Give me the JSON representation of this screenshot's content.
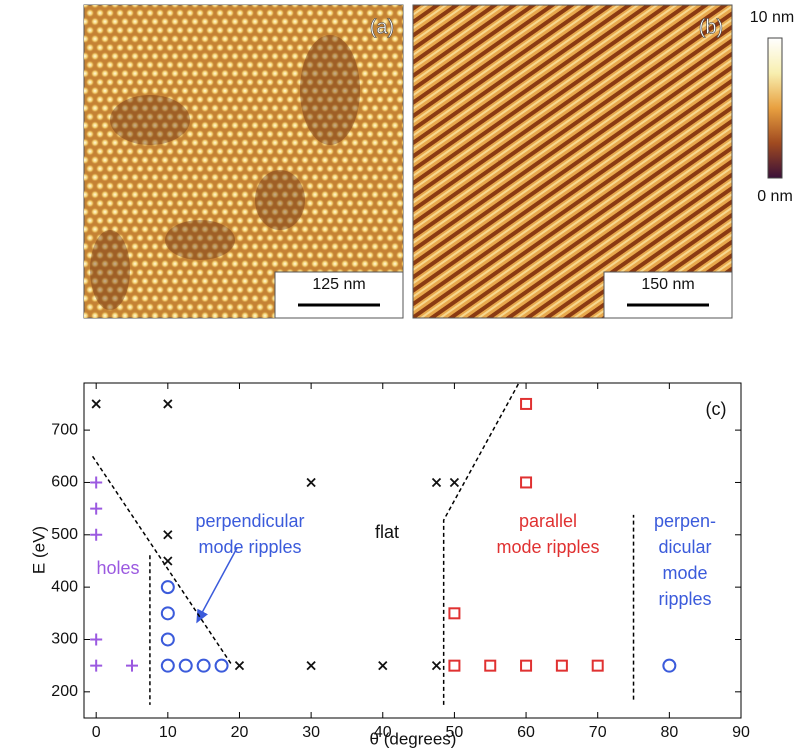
{
  "panels": [
    {
      "label": "(a)",
      "scale_bar": "125 nm"
    },
    {
      "label": "(b)",
      "scale_bar": "150 nm"
    }
  ],
  "colorbar": {
    "max_label": "10 nm",
    "min_label": "0 nm"
  },
  "chart_data": {
    "type": "scatter",
    "xlabel": "θ (degrees)",
    "ylabel": "E  (eV)",
    "xlim": [
      -1.7,
      90
    ],
    "ylim": [
      150,
      790
    ],
    "xticks": [
      0,
      10,
      20,
      30,
      40,
      50,
      60,
      70,
      80,
      90
    ],
    "yticks": [
      200,
      300,
      400,
      500,
      600,
      700
    ],
    "series": [
      {
        "marker": "plus",
        "color": "#9b59e0",
        "x": [
          0,
          0,
          0,
          0,
          0,
          5
        ],
        "values": [
          250,
          300,
          500,
          550,
          600,
          250
        ]
      },
      {
        "marker": "x",
        "color": "#111111",
        "x": [
          0,
          10,
          10,
          10,
          20,
          30,
          30,
          40,
          47.5,
          50,
          47.5
        ],
        "values": [
          750,
          750,
          500,
          450,
          250,
          600,
          250,
          250,
          600,
          600,
          250
        ]
      },
      {
        "marker": "circle",
        "color": "#3b5bdb",
        "x": [
          10,
          10,
          10,
          10,
          12.5,
          15,
          17.5,
          80
        ],
        "values": [
          400,
          350,
          300,
          250,
          250,
          250,
          250,
          250
        ]
      },
      {
        "marker": "square",
        "color": "#e03131",
        "x": [
          60,
          60,
          50,
          50,
          55,
          60,
          65,
          70
        ],
        "values": [
          750,
          600,
          350,
          250,
          250,
          250,
          250,
          250
        ]
      }
    ],
    "lines": [
      {
        "x": [
          -0.5,
          19
        ],
        "values": [
          650,
          250
        ]
      },
      {
        "x": [
          7.5,
          7.5
        ],
        "values": [
          461,
          175
        ]
      },
      {
        "x": [
          48.5,
          48.5,
          59
        ],
        "values": [
          175,
          528,
          790
        ]
      },
      {
        "x": [
          75,
          75
        ],
        "values": [
          185,
          538
        ]
      }
    ],
    "annotations": [
      {
        "lines": [
          "holes"
        ],
        "color": "#9b59e0"
      },
      {
        "lines": [
          "perpendicular",
          "mode ripples"
        ],
        "color": "#3b5bdb"
      },
      {
        "lines": [
          "flat"
        ],
        "color": "#111111"
      },
      {
        "lines": [
          "parallel",
          "mode ripples"
        ],
        "color": "#e03131"
      },
      {
        "lines": [
          "perpen-",
          "dicular",
          "mode",
          "ripples"
        ],
        "color": "#3b5bdb"
      },
      {
        "lines": [
          "(c)"
        ],
        "color": "#111111"
      }
    ]
  }
}
